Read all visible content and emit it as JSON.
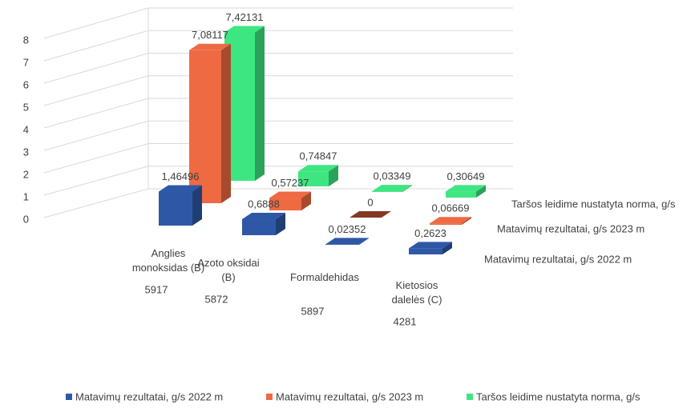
{
  "chart_data": {
    "type": "bar3d",
    "categories": [
      "Anglies monoksidas (B)",
      "Azoto oksidai (B)",
      "Formaldehidas",
      "Kietosios dalelės (C)"
    ],
    "category_codes": [
      "5917",
      "5872",
      "5897",
      "4281"
    ],
    "series": [
      {
        "name": "Matavimų rezultatai, g/s 2022 m",
        "color": "#2e58a6",
        "values": [
          1.46496,
          0.6888,
          0.02352,
          0.2623
        ],
        "value_labels": [
          "1,46496",
          "0,6888",
          "0,02352",
          "0,2623"
        ]
      },
      {
        "name": "Matavimų rezultatai, g/s 2023 m",
        "color": "#ee6a42",
        "values": [
          7.08117,
          0.57237,
          0,
          0.06669
        ],
        "value_labels": [
          "7,08117",
          "0,57237",
          "0",
          "0,06669"
        ]
      },
      {
        "name": "Taršos leidime nustatyta norma, g/s",
        "color": "#3ee681",
        "values": [
          7.42131,
          0.74847,
          0.03349,
          0.30649
        ],
        "value_labels": [
          "7,42131",
          "0,74847",
          "0,03349",
          "0,30649"
        ]
      }
    ],
    "ylim": [
      0,
      8
    ],
    "yticks": [
      0,
      1,
      2,
      3,
      4,
      5,
      6,
      7,
      8
    ],
    "grid": true,
    "legend": "bottom"
  }
}
